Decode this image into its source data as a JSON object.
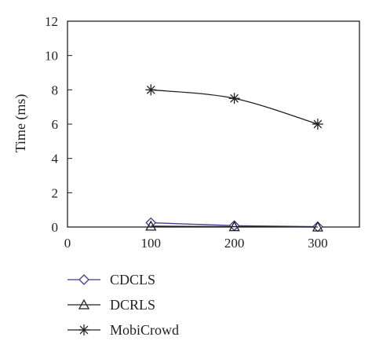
{
  "chart_data": {
    "type": "line",
    "title": "",
    "xlabel": "",
    "ylabel": "Time (ms)",
    "xlim": [
      0,
      350
    ],
    "ylim": [
      0,
      12
    ],
    "xticks": [
      0,
      100,
      200,
      300
    ],
    "yticks": [
      0,
      2,
      4,
      6,
      8,
      10,
      12
    ],
    "x": [
      100,
      200,
      300
    ],
    "grid": false,
    "legend_position": "bottom-left, below plot",
    "series": [
      {
        "name": "CDCLS",
        "marker": "diamond",
        "color": "#3b3b8f",
        "values": [
          0.25,
          0.08,
          0.02
        ]
      },
      {
        "name": "DCRLS",
        "marker": "triangle",
        "color": "#231f20",
        "values": [
          0.05,
          0.02,
          0.0
        ]
      },
      {
        "name": "MobiCrowd",
        "marker": "asterisk",
        "color": "#231f20",
        "values": [
          8.0,
          7.5,
          6.0
        ]
      }
    ]
  }
}
